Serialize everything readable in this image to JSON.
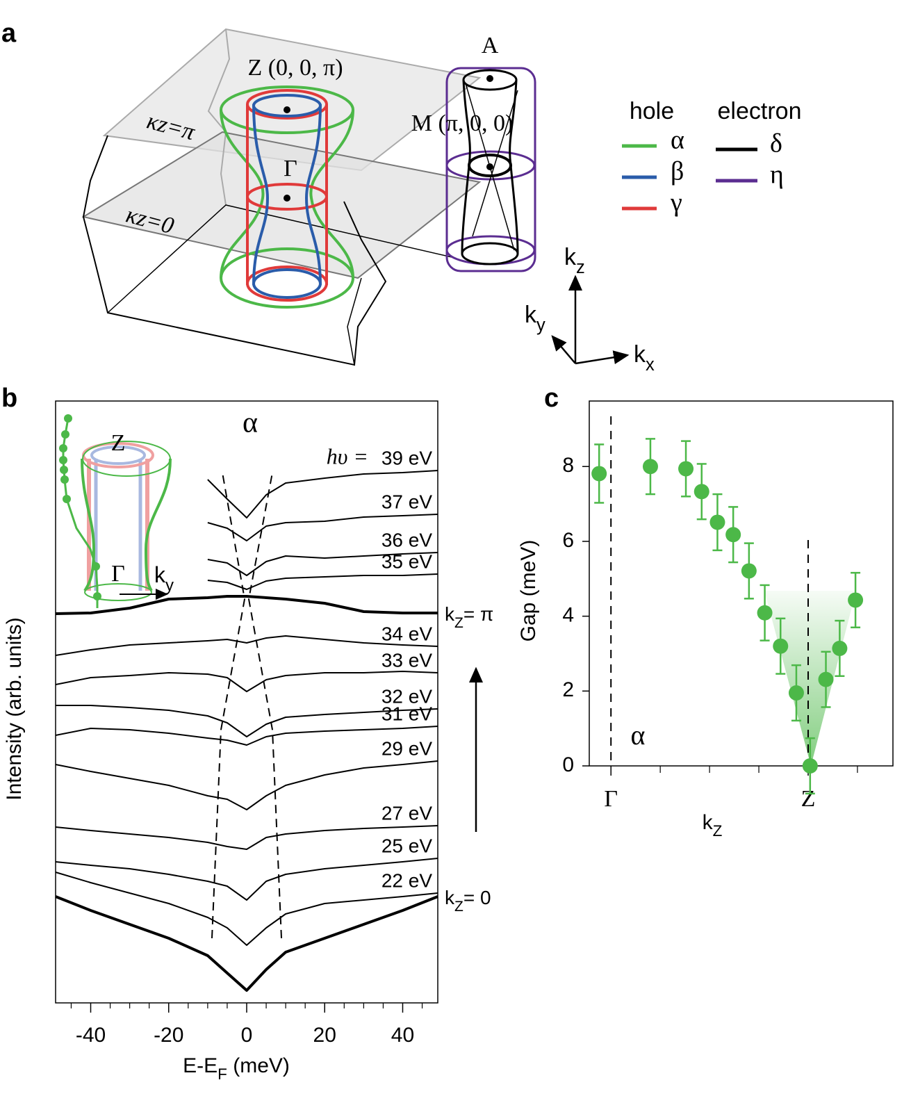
{
  "panel_labels": [
    "a",
    "b",
    "c"
  ],
  "diagram": {
    "labels": {
      "Z": "Z (0, 0, π)",
      "Gamma": "Γ",
      "A": "A",
      "M": "M (π, 0, 0)",
      "kz_pi": "κz=π",
      "kz_0": "κz=0"
    },
    "legend": {
      "hole_title": "hole",
      "electron_title": "electron",
      "hole": [
        {
          "name": "α",
          "color": "#4cb848"
        },
        {
          "name": "β",
          "color": "#2a5caa"
        },
        {
          "name": "γ",
          "color": "#e03a3a"
        }
      ],
      "electron": [
        {
          "name": "δ",
          "color": "#000000"
        },
        {
          "name": "η",
          "color": "#5b2d91"
        }
      ]
    },
    "axes": {
      "kz": {
        "base": "k",
        "sub": "z"
      },
      "ky": {
        "base": "k",
        "sub": "y"
      },
      "kx": {
        "base": "k",
        "sub": "x"
      }
    }
  },
  "chart_data": [
    {
      "type": "line",
      "title": "α",
      "ylabel": "Intensity (arb. units)",
      "xlabel": {
        "base": "E-E",
        "sub": "F",
        "rest": " (meV)"
      },
      "photon_label": "hυ =",
      "inset": {
        "Z": "Z",
        "Gamma": "Γ",
        "ky": {
          "base": "k",
          "sub": "y"
        }
      },
      "x": [
        -49,
        -40,
        -30,
        -20,
        -10,
        -5,
        0,
        5,
        10,
        20,
        30,
        40,
        49
      ],
      "xlim": [
        -49,
        49
      ],
      "xticks": [
        -40,
        -20,
        0,
        20,
        40
      ],
      "xminorticks": [
        -45,
        -35,
        -30,
        -25,
        -15,
        -10,
        -5,
        5,
        10,
        15,
        25,
        30,
        35,
        45
      ],
      "ylim": [
        0,
        866
      ],
      "series": [
        {
          "name": "39 eV",
          "color": "#000000",
          "values": [
            null,
            null,
            null,
            null,
            753,
            725,
            698,
            731,
            748,
            755,
            761,
            763,
            766
          ]
        },
        {
          "name": "37 eV",
          "color": "#000000",
          "values": [
            null,
            null,
            null,
            null,
            691,
            683,
            665,
            686,
            691,
            693,
            699,
            701,
            703
          ]
        },
        {
          "name": "36 eV",
          "color": "#000000",
          "values": [
            null,
            null,
            null,
            null,
            638,
            633,
            615,
            635,
            643,
            640,
            643,
            646,
            648
          ]
        },
        {
          "name": "35 eV",
          "color": "#000000",
          "values": [
            null,
            null,
            null,
            null,
            608,
            605,
            595,
            607,
            611,
            613,
            615,
            615,
            617
          ]
        },
        {
          "annotation": {
            "base": "k",
            "sub": "Z",
            "rest": "= π"
          },
          "color": "#000000",
          "thick": true,
          "values": [
            560,
            561,
            568,
            581,
            583,
            585,
            585,
            583,
            581,
            575,
            563,
            561,
            561
          ]
        },
        {
          "name": "34 eV",
          "color": "#000000",
          "values": [
            500,
            508,
            515,
            518,
            521,
            523,
            518,
            525,
            528,
            523,
            518,
            515,
            513
          ]
        },
        {
          "name": "33 eV",
          "color": "#000000",
          "values": [
            458,
            468,
            471,
            475,
            473,
            468,
            448,
            465,
            471,
            475,
            475,
            477,
            475
          ]
        },
        {
          "name": "32 eV",
          "color": "#000000",
          "values": [
            428,
            428,
            425,
            421,
            413,
            403,
            383,
            401,
            411,
            415,
            418,
            421,
            423
          ]
        },
        {
          "name": "31 eV",
          "color": "#000000",
          "values": [
            385,
            395,
            393,
            388,
            381,
            378,
            371,
            383,
            388,
            391,
            393,
            395,
            398
          ]
        },
        {
          "name": "29 eV",
          "color": "#000000",
          "values": [
            343,
            333,
            323,
            313,
            298,
            293,
            278,
            298,
            313,
            328,
            338,
            343,
            348
          ]
        },
        {
          "name": "27 eV",
          "color": "#000000",
          "values": [
            253,
            248,
            243,
            238,
            231,
            225,
            221,
            238,
            243,
            248,
            251,
            253,
            255
          ]
        },
        {
          "name": "25 eV",
          "color": "#000000",
          "values": [
            203,
            198,
            193,
            185,
            175,
            168,
            148,
            175,
            185,
            193,
            198,
            203,
            208
          ]
        },
        {
          "name": "22 eV",
          "color": "#000000",
          "values": [
            188,
            173,
            158,
            143,
            123,
            108,
            83,
            108,
            128,
            143,
            148,
            153,
            158
          ]
        },
        {
          "annotation": {
            "base": "k",
            "sub": "Z",
            "rest": "= 0"
          },
          "color": "#000000",
          "thick": true,
          "values": [
            153,
            133,
            113,
            93,
            68,
            43,
            18,
            48,
            73,
            93,
            113,
            133,
            153
          ]
        }
      ]
    },
    {
      "type": "scatter",
      "ylabel": "Gap (meV)",
      "xlabel": {
        "base": "k",
        "sub": "Z"
      },
      "annotation": "α",
      "color": "#4cb848",
      "x": [
        -0.06,
        0.2,
        0.38,
        0.46,
        0.54,
        0.62,
        0.7,
        0.78,
        0.86,
        0.94,
        1.01,
        1.09,
        1.16,
        1.24
      ],
      "values": [
        7.81,
        8.0,
        7.94,
        7.33,
        6.51,
        6.18,
        5.21,
        4.09,
        3.2,
        1.95,
        0,
        2.31,
        3.14,
        4.43
      ],
      "errors": [
        0.78,
        0.74,
        0.74,
        0.74,
        0.75,
        0.74,
        0.74,
        0.74,
        0.74,
        0.74,
        0.74,
        0.74,
        0.74,
        0.73
      ],
      "xlim": [
        -0.11,
        1.43
      ],
      "xticks": [
        {
          "value": 0,
          "label": "Γ"
        },
        {
          "value": 1,
          "label": "Z"
        }
      ],
      "xminorticks": [
        0.25,
        0.5,
        0.75,
        1.25
      ],
      "ylim": [
        0,
        9.75
      ],
      "yticks": [
        0,
        2,
        4,
        6,
        8
      ]
    }
  ]
}
